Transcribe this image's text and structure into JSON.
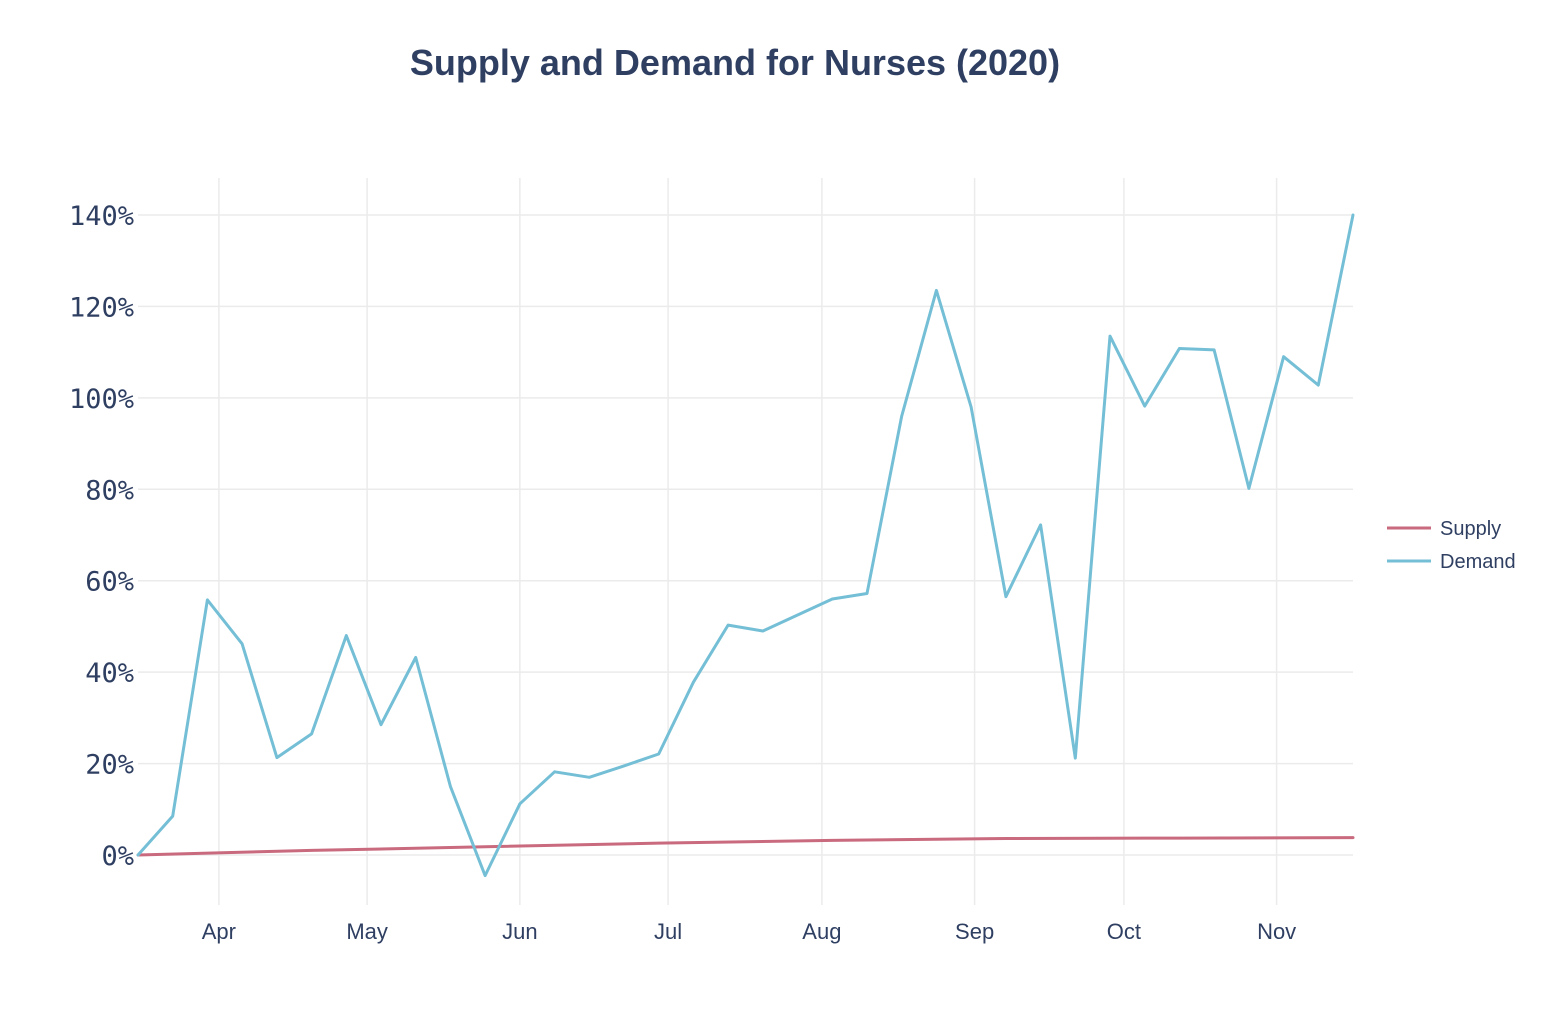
{
  "chart_data": {
    "type": "line",
    "title": "Supply and Demand for Nurses (2020)",
    "xlabel": "",
    "ylabel": "",
    "ylim": [
      -8,
      148
    ],
    "yticks": [
      0,
      20,
      40,
      60,
      80,
      100,
      120,
      140
    ],
    "ytick_labels": [
      "0%",
      "20%",
      "40%",
      "60%",
      "80%",
      "100%",
      "120%",
      "140%"
    ],
    "xticks": [
      {
        "label": "Apr",
        "x": 2.33
      },
      {
        "label": "May",
        "x": 6.6
      },
      {
        "label": "Jun",
        "x": 11.0
      },
      {
        "label": "Jul",
        "x": 15.27
      },
      {
        "label": "Aug",
        "x": 19.7
      },
      {
        "label": "Sep",
        "x": 24.1
      },
      {
        "label": "Oct",
        "x": 28.4
      },
      {
        "label": "Nov",
        "x": 32.8
      }
    ],
    "xlim": [
      0,
      35
    ],
    "legend_position": "right",
    "series": [
      {
        "name": "Supply",
        "color": "#c96a7e",
        "x": [
          0,
          5,
          10,
          15,
          20,
          25,
          30,
          35
        ],
        "values": [
          0,
          1.0,
          1.8,
          2.6,
          3.2,
          3.6,
          3.7,
          3.8
        ]
      },
      {
        "name": "Demand",
        "color": "#74bfd6",
        "x": [
          0,
          1,
          2,
          3,
          4,
          5,
          6,
          7,
          8,
          9,
          10,
          11,
          12,
          13,
          14,
          15,
          16,
          17,
          18,
          19,
          20,
          21,
          22,
          23,
          24,
          25,
          26,
          27,
          28,
          29,
          30,
          31,
          32,
          33,
          34,
          35
        ],
        "values": [
          0,
          8.5,
          55.8,
          46.2,
          21.3,
          26.5,
          48.0,
          28.5,
          43.2,
          15.0,
          -4.5,
          11.2,
          18.2,
          17.0,
          19.5,
          22.1,
          37.8,
          50.3,
          49.0,
          52.5,
          56.0,
          57.2,
          96.0,
          123.5,
          98.0,
          56.5,
          72.2,
          21.2,
          113.5,
          98.2,
          110.8,
          110.5,
          80.2,
          109.0,
          102.8,
          140.0
        ]
      }
    ]
  }
}
